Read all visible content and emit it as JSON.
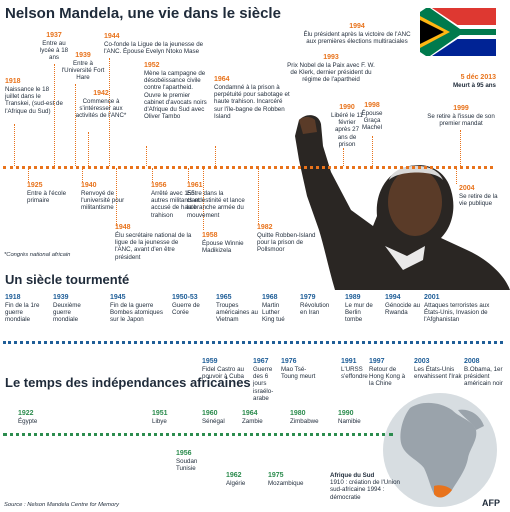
{
  "title": "Nelson Mandela, une vie dans le siècle",
  "note": "*Congrès national africain",
  "section2_title": "Un siècle tourmenté",
  "section3_title": "Le temps des indépendances africaines",
  "source": "Source : Nelson Mandela Centre for Memory",
  "logo": "AFP",
  "colors": {
    "orange": "#e8731c",
    "blue": "#1f5e98",
    "green": "#2c8c4e",
    "dark": "#1f2b3a"
  },
  "mandela": {
    "y1918": "1918",
    "t1918": "Naissance le 18 juillet dans le Transkei, (sud-est de l'Afrique du Sud)",
    "y1925": "1925",
    "t1925": "Entre à l'école primaire",
    "y1937": "1937",
    "t1937": "Entre au lycée à 18 ans",
    "y1939": "1939",
    "t1939": "Entre à l'Université Fort Hare",
    "y1940": "1940",
    "t1940": "Renvoyé de l'université pour militantisme",
    "y1942": "1942",
    "t1942": "Commence à s'intéresser aux activités de l'ANC*",
    "y1944": "1944",
    "t1944": "Co-fonde la Ligue de la jeunesse de l'ANC. Épouse Evelyn Ntoko Mase",
    "y1948": "1948",
    "t1948": "Élu secrétaire national de la ligue de la jeunesse de l'ANC, avant d'en être président",
    "y1952": "1952",
    "t1952": "Mène la campagne de désobéissance civile contre l'apartheid. Ouvre le premier cabinet d'avocats noirs d'Afrique du Sud avec Oliver Tambo",
    "y1956": "1956",
    "t1956": "Arrêté avec 155 autres militants et accusé de haute trahison",
    "y1958": "1958",
    "t1958": "Épouse Winnie Madikizela",
    "y1961": "1961",
    "t1961": "Entre dans la clandestinité et lance la branche armée du mouvement",
    "y1964": "1964",
    "t1964": "Condamné à la prison à perpétuité pour sabotage et haute trahison. Incarcéré sur l'île-bagne de Robben Island",
    "y1982": "1982",
    "t1982": "Quitte Robben-Island pour la prison de Pollsmoor",
    "y1990": "1990",
    "t1990": "Libéré le 11 février après 27 ans de prison",
    "y1993": "1993",
    "t1993": "Prix Nobel de la Paix avec F. W. de Klerk, dernier président du régime de l'apartheid",
    "y1994": "1994",
    "t1994": "Élu président après la victoire de l'ANC aux premières élections multiraciales",
    "y1998": "1998",
    "t1998": "Épouse Graça Machel",
    "y1999": "1999",
    "t1999": "Se retire à l'issue de son premier mandat",
    "y2004": "2004",
    "t2004": "Se retire de la vie publique",
    "y2013": "5 déc 2013",
    "t2013": "Meurt à 95 ans"
  },
  "century": {
    "e1918": {
      "year": "1918",
      "text": "Fin de la 1re guerre mondiale"
    },
    "e1939": {
      "year": "1939",
      "text": "Deuxième guerre mondiale"
    },
    "e1945": {
      "year": "1945",
      "text": "Fin de la guerre Bombes atomiques sur le Japon"
    },
    "e1950": {
      "year": "1950-53",
      "text": "Guerre de Corée"
    },
    "e1959": {
      "year": "1959",
      "text": "Fidel Castro au pouvoir à Cuba"
    },
    "e1965": {
      "year": "1965",
      "text": "Troupes américaines au Vietnam"
    },
    "e1967": {
      "year": "1967",
      "text": "Guerre des 6 jours israélo-arabe"
    },
    "e1968": {
      "year": "1968",
      "text": "Martin Luther King tué"
    },
    "e1976": {
      "year": "1976",
      "text": "Mao Tsé-Toung meurt"
    },
    "e1979": {
      "year": "1979",
      "text": "Révolution en Iran"
    },
    "e1989": {
      "year": "1989",
      "text": "Le mur de Berlin tombe"
    },
    "e1991": {
      "year": "1991",
      "text": "L'URSS s'effondre"
    },
    "e1994": {
      "year": "1994",
      "text": "Génocide au Rwanda"
    },
    "e1997": {
      "year": "1997",
      "text": "Retour de Hong Kong à la Chine"
    },
    "e2001": {
      "year": "2001",
      "text": "Attaques terroristes aux États-Unis, Invasion de l'Afghanistan"
    },
    "e2003": {
      "year": "2003",
      "text": "Les États-Unis envahissent l'Irak"
    },
    "e2008": {
      "year": "2008",
      "text": "B.Obama, 1er président américain noir"
    }
  },
  "independence": {
    "e1922": {
      "year": "1922",
      "text": "Égypte"
    },
    "e1951": {
      "year": "1951",
      "text": "Libye"
    },
    "e1956": {
      "year": "1956",
      "text": "Soudan Tunisie"
    },
    "e1960": {
      "year": "1960",
      "text": "Sénégal"
    },
    "e1962": {
      "year": "1962",
      "text": "Algérie"
    },
    "e1964": {
      "year": "1964",
      "text": "Zambie"
    },
    "e1975": {
      "year": "1975",
      "text": "Mozambique"
    },
    "e1980": {
      "year": "1980",
      "text": "Zimbabwe"
    },
    "e1990": {
      "year": "1990",
      "text": "Namibie"
    },
    "sa_title": "Afrique du Sud",
    "sa_text": "1910 : création de l'Union sud-africaine 1994 : démocratie"
  }
}
